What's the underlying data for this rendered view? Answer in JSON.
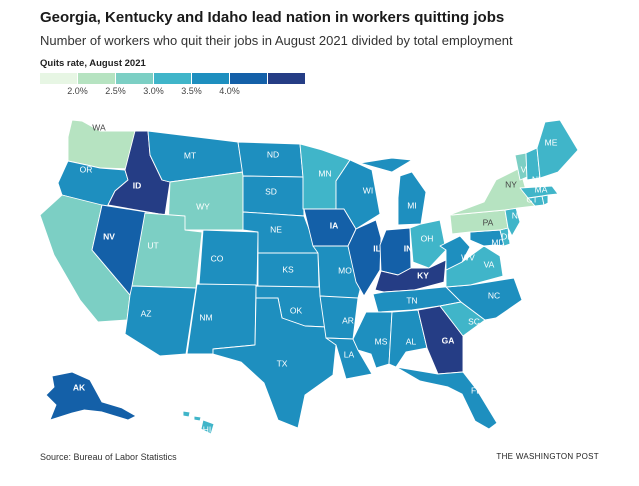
{
  "title": "Georgia, Kentucky and Idaho lead nation in workers quitting jobs",
  "subtitle": "Number of workers who quit their jobs in August 2021 divided by total employment",
  "legend": {
    "title": "Quits rate, August 2021",
    "bins": [
      {
        "color": "#e7f6e4"
      },
      {
        "color": "#b6e3c1"
      },
      {
        "color": "#7ccfc4"
      },
      {
        "color": "#40b5c9"
      },
      {
        "color": "#1e8fbf"
      },
      {
        "color": "#1460a8"
      },
      {
        "color": "#253d85"
      }
    ],
    "ticks": [
      "2.0%",
      "2.5%",
      "3.0%",
      "3.5%",
      "4.0%"
    ]
  },
  "states": [
    {
      "abbr": "WA",
      "bin": 1
    },
    {
      "abbr": "OR",
      "bin": 4
    },
    {
      "abbr": "CA",
      "bin": 2
    },
    {
      "abbr": "ID",
      "bin": 6
    },
    {
      "abbr": "NV",
      "bin": 5
    },
    {
      "abbr": "MT",
      "bin": 4
    },
    {
      "abbr": "WY",
      "bin": 2
    },
    {
      "abbr": "UT",
      "bin": 2
    },
    {
      "abbr": "AZ",
      "bin": 4
    },
    {
      "abbr": "CO",
      "bin": 4
    },
    {
      "abbr": "NM",
      "bin": 4
    },
    {
      "abbr": "ND",
      "bin": 4
    },
    {
      "abbr": "SD",
      "bin": 4
    },
    {
      "abbr": "NE",
      "bin": 4
    },
    {
      "abbr": "KS",
      "bin": 4
    },
    {
      "abbr": "OK",
      "bin": 4
    },
    {
      "abbr": "TX",
      "bin": 4
    },
    {
      "abbr": "MN",
      "bin": 3
    },
    {
      "abbr": "IA",
      "bin": 5
    },
    {
      "abbr": "MO",
      "bin": 4
    },
    {
      "abbr": "AR",
      "bin": 4
    },
    {
      "abbr": "LA",
      "bin": 4
    },
    {
      "abbr": "WI",
      "bin": 4
    },
    {
      "abbr": "IL",
      "bin": 5
    },
    {
      "abbr": "MI",
      "bin": 4
    },
    {
      "abbr": "IN",
      "bin": 5
    },
    {
      "abbr": "OH",
      "bin": 3
    },
    {
      "abbr": "KY",
      "bin": 6
    },
    {
      "abbr": "TN",
      "bin": 4
    },
    {
      "abbr": "MS",
      "bin": 4
    },
    {
      "abbr": "AL",
      "bin": 4
    },
    {
      "abbr": "GA",
      "bin": 6
    },
    {
      "abbr": "FL",
      "bin": 4
    },
    {
      "abbr": "SC",
      "bin": 3
    },
    {
      "abbr": "NC",
      "bin": 4
    },
    {
      "abbr": "VA",
      "bin": 3
    },
    {
      "abbr": "WV",
      "bin": 4
    },
    {
      "abbr": "MD",
      "bin": 4
    },
    {
      "abbr": "DE",
      "bin": 3
    },
    {
      "abbr": "PA",
      "bin": 1
    },
    {
      "abbr": "NJ",
      "bin": 3
    },
    {
      "abbr": "NY",
      "bin": 1
    },
    {
      "abbr": "CT",
      "bin": 3
    },
    {
      "abbr": "RI",
      "bin": 3
    },
    {
      "abbr": "MA",
      "bin": 3
    },
    {
      "abbr": "VT",
      "bin": 2
    },
    {
      "abbr": "NH",
      "bin": 3
    },
    {
      "abbr": "ME",
      "bin": 3
    },
    {
      "abbr": "AK",
      "bin": 5
    },
    {
      "abbr": "HI",
      "bin": 3
    }
  ],
  "source": "Source: Bureau of Labor Statistics",
  "credit": "THE WASHINGTON POST"
}
